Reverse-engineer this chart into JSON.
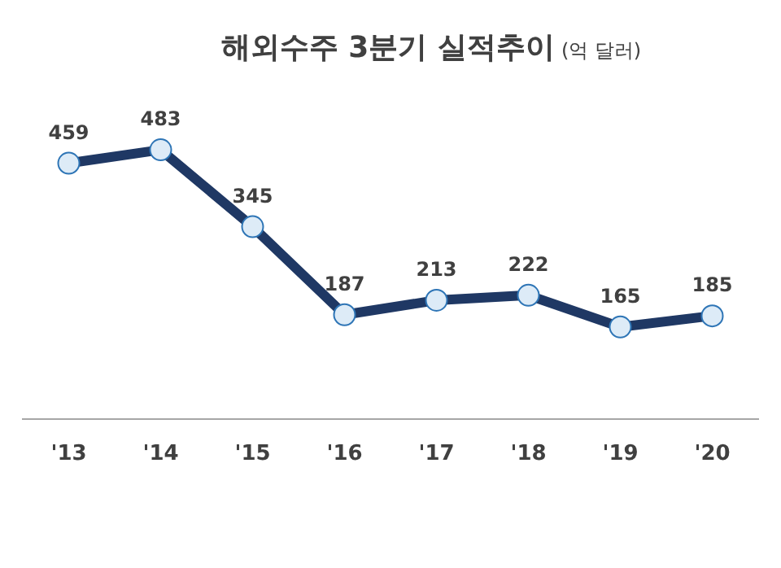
{
  "chart_data": {
    "type": "line",
    "title": "해외수주 3분기 실적추이",
    "subtitle": "(억 달러)",
    "categories": [
      "'13",
      "'14",
      "'15",
      "'16",
      "'17",
      "'18",
      "'19",
      "'20"
    ],
    "series": [
      {
        "color": "#1f3864",
        "values": [
          459,
          483,
          345,
          187,
          213,
          222,
          165,
          185
        ]
      }
    ],
    "tick_labels": "x",
    "data_labels": true,
    "marker": "circle",
    "line_style": "solid",
    "grid": false,
    "legend": false
  }
}
